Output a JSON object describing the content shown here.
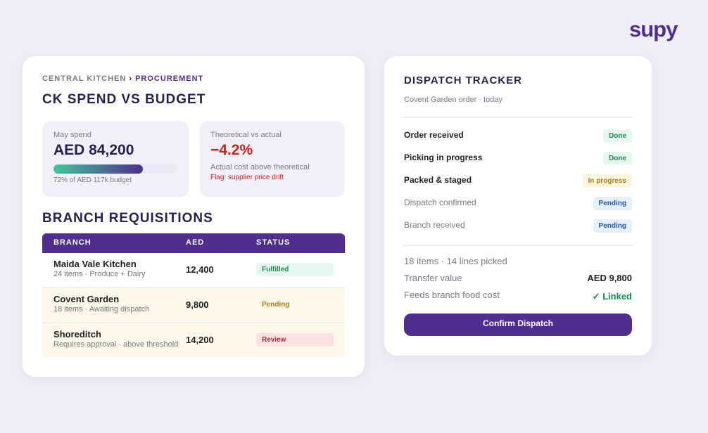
{
  "logo": "supy",
  "left": {
    "breadcrumb": {
      "parent": "CENTRAL KITCHEN",
      "separator": "›",
      "current": "PROCUREMENT"
    },
    "title": "CK SPEND VS BUDGET",
    "spend": {
      "label": "May spend",
      "value": "AED 84,200",
      "progress": {
        "value": 72,
        "label": "72% of AED 117k budget"
      }
    },
    "variance": {
      "label": "Theoretical vs actual",
      "value": "−4.2%",
      "note": "Actual cost above theoretical",
      "flag": "Flag: supplier price drift"
    },
    "requisitions": {
      "title": "BRANCH REQUISITIONS",
      "columns": [
        "BRANCH",
        "AED",
        "STATUS"
      ],
      "rows": [
        {
          "branch": "Maida Vale Kitchen",
          "detail": "24 items · Produce + Dairy",
          "aed": "12,400",
          "status": "Fulfilled"
        },
        {
          "branch": "Covent Garden",
          "detail": "18 items · Awaiting dispatch",
          "aed": "9,800",
          "status": "Pending"
        },
        {
          "branch": "Shoreditch",
          "detail": "Requires approval · above threshold",
          "aed": "14,200",
          "status": "Review"
        }
      ]
    }
  },
  "dispatch": {
    "title": "DISPATCH TRACKER",
    "subtitle": "Covent Garden order · today",
    "steps": [
      {
        "label": "Order received",
        "status": "Done"
      },
      {
        "label": "Picking in progress",
        "status": "Done"
      },
      {
        "label": "Packed & staged",
        "status": "In progress"
      },
      {
        "label": "Dispatch confirmed",
        "status": "Pending"
      },
      {
        "label": "Branch received",
        "status": "Pending"
      }
    ],
    "summary": "18 items · 14 lines picked",
    "transfer": {
      "label": "Transfer value",
      "value": "AED 9,800"
    },
    "food_cost": {
      "label": "Feeds branch food cost",
      "value": "✓ Linked"
    },
    "button": "Confirm Dispatch"
  }
}
